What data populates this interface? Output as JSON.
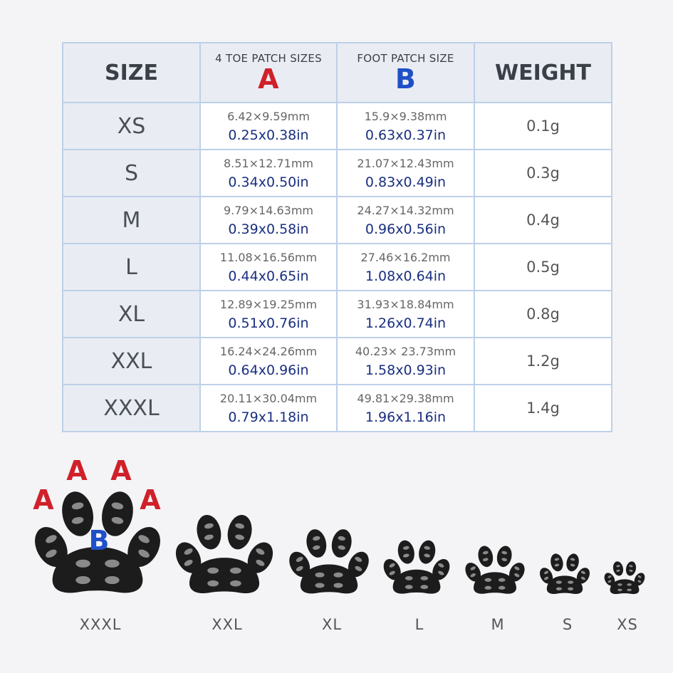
{
  "table": {
    "header": {
      "size": "SIZE",
      "toe": "4 TOE PATCH SIZES",
      "toe_letter": "A",
      "foot": "FOOT PATCH SIZE",
      "foot_letter": "B",
      "weight": "WEIGHT"
    },
    "rows": [
      [
        "XS",
        "6.42×9.59mm",
        "0.25x0.38in",
        "15.9×9.38mm",
        "0.63x0.37in",
        "0.1g"
      ],
      [
        "S",
        "8.51×12.71mm",
        "0.34x0.50in",
        "21.07×12.43mm",
        "0.83x0.49in",
        "0.3g"
      ],
      [
        "M",
        "9.79×14.63mm",
        "0.39x0.58in",
        "24.27×14.32mm",
        "0.96x0.56in",
        "0.4g"
      ],
      [
        "L",
        "11.08×16.56mm",
        "0.44x0.65in",
        "27.46×16.2mm",
        "1.08x0.64in",
        "0.5g"
      ],
      [
        "XL",
        "12.89×19.25mm",
        "0.51x0.76in",
        "31.93×18.84mm",
        "1.26x0.74in",
        "0.8g"
      ],
      [
        "XXL",
        "16.24×24.26mm",
        "0.64x0.96in",
        "40.23× 23.73mm",
        "1.58x0.93in",
        "1.2g"
      ],
      [
        "XXXL",
        "20.11×30.04mm",
        "0.79x1.18in",
        "49.81×29.38mm",
        "1.96x1.16in",
        "1.4g"
      ]
    ]
  },
  "diagram": {
    "toe_labels": [
      "A",
      "A",
      "A",
      "A"
    ],
    "foot_label": "B",
    "paw_labels": [
      "XXXL",
      "XXL",
      "XL",
      "L",
      "M",
      "S",
      "XS"
    ]
  }
}
